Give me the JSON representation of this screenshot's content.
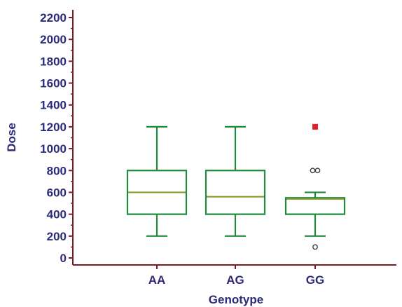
{
  "chart_data": {
    "type": "box",
    "xlabel": "Genotype",
    "ylabel": "Dose",
    "ylim": [
      0,
      2200
    ],
    "yticks": [
      0,
      200,
      400,
      600,
      800,
      1000,
      1200,
      1400,
      1600,
      1800,
      2000,
      2200
    ],
    "categories": [
      "AA",
      "AG",
      "GG"
    ],
    "boxes": [
      {
        "category": "AA",
        "whisker_low": 200,
        "q1": 400,
        "median": 600,
        "q3": 800,
        "whisker_high": 1200,
        "outliers": [],
        "far_outliers": []
      },
      {
        "category": "AG",
        "whisker_low": 200,
        "q1": 400,
        "median": 560,
        "q3": 800,
        "whisker_high": 1200,
        "outliers": [],
        "far_outliers": []
      },
      {
        "category": "GG",
        "whisker_low": 200,
        "q1": 400,
        "median": 540,
        "q3": 550,
        "whisker_high": 600,
        "outliers": [
          100,
          800,
          800
        ],
        "far_outliers": [
          1200
        ]
      }
    ],
    "grid": false,
    "legend": "none"
  },
  "colors": {
    "axis": "#7a1f1f",
    "text": "#2b2b7a",
    "box": "#1e8a3c",
    "median": "#8a9a2a",
    "far_outlier": "#e0202a",
    "outlier": "#333333"
  }
}
